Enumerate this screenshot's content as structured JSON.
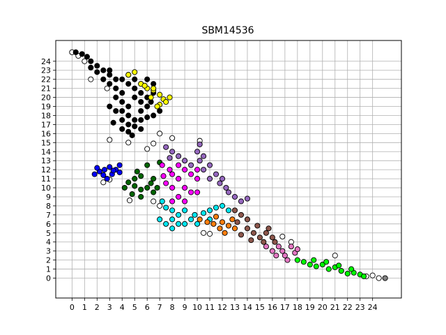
{
  "chart_data": {
    "type": "scatter",
    "title": "SBM14536",
    "xlabel": "",
    "ylabel": "",
    "xlim": [
      -1.3,
      26.3
    ],
    "ylim": [
      -2.2,
      26.3
    ],
    "grid": true,
    "x_ticks": [
      "0",
      "1",
      "2",
      "3",
      "4",
      "5",
      "6",
      "7",
      "8",
      "9",
      "10",
      "11",
      "12",
      "13",
      "14",
      "15",
      "16",
      "17",
      "18",
      "19",
      "20",
      "21",
      "22",
      "23",
      "24"
    ],
    "y_ticks": [
      "0",
      "1",
      "2",
      "3",
      "4",
      "5",
      "6",
      "7",
      "8",
      "9",
      "10",
      "11",
      "12",
      "13",
      "14",
      "15",
      "16",
      "17",
      "18",
      "19",
      "20",
      "21",
      "22",
      "23",
      "24"
    ],
    "series": [
      {
        "color": "#ffffff",
        "label_hint": "unassigned (white)",
        "points": [
          [
            0,
            25.0
          ],
          [
            0.5,
            24.6
          ],
          [
            1.0,
            24.0
          ],
          [
            1.5,
            22.0
          ],
          [
            2.8,
            21.0
          ],
          [
            3.0,
            15.3
          ],
          [
            4.5,
            15.0
          ],
          [
            6.0,
            14.3
          ],
          [
            6.5,
            14.9
          ],
          [
            7.0,
            16.0
          ],
          [
            8.0,
            15.5
          ],
          [
            10.2,
            15.2
          ],
          [
            2.5,
            10.6
          ],
          [
            3.0,
            10.9
          ],
          [
            4.6,
            8.6
          ],
          [
            6.5,
            8.5
          ],
          [
            7.0,
            8.0
          ],
          [
            10.5,
            5.0
          ],
          [
            11.0,
            4.9
          ],
          [
            16.8,
            4.6
          ],
          [
            17.5,
            4.0
          ],
          [
            21.0,
            2.5
          ],
          [
            21.5,
            0.8
          ],
          [
            23.5,
            0.2
          ],
          [
            24.0,
            0.3
          ],
          [
            24.5,
            0.0
          ]
        ]
      },
      {
        "color": "#000000",
        "label_hint": "black cluster",
        "points": [
          [
            0.3,
            25.0
          ],
          [
            0.8,
            24.8
          ],
          [
            1.2,
            24.5
          ],
          [
            1.5,
            24.0
          ],
          [
            2.0,
            23.5
          ],
          [
            2.5,
            23.0
          ],
          [
            3.0,
            22.5
          ],
          [
            2.0,
            22.8
          ],
          [
            1.5,
            23.3
          ],
          [
            3.5,
            22.0
          ],
          [
            3.0,
            21.5
          ],
          [
            3.5,
            21.0
          ],
          [
            4.0,
            20.5
          ],
          [
            3.5,
            20.0
          ],
          [
            4.0,
            19.5
          ],
          [
            4.5,
            19.0
          ],
          [
            4.0,
            18.5
          ],
          [
            4.5,
            18.0
          ],
          [
            5.0,
            17.5
          ],
          [
            4.5,
            17.0
          ],
          [
            4.0,
            16.5
          ],
          [
            4.5,
            16.2
          ],
          [
            5.0,
            16.8
          ],
          [
            5.5,
            17.5
          ],
          [
            6.0,
            17.8
          ],
          [
            6.5,
            18.0
          ],
          [
            5.5,
            18.5
          ],
          [
            6.0,
            19.0
          ],
          [
            5.5,
            19.5
          ],
          [
            5.0,
            20.0
          ],
          [
            5.5,
            20.5
          ],
          [
            5.0,
            21.0
          ],
          [
            4.5,
            21.5
          ],
          [
            4.0,
            22.0
          ],
          [
            4.5,
            22.5
          ],
          [
            5.0,
            22.0
          ],
          [
            5.5,
            21.5
          ],
          [
            6.0,
            22.0
          ],
          [
            6.5,
            21.5
          ],
          [
            3.0,
            19.0
          ],
          [
            3.5,
            18.5
          ],
          [
            4.0,
            17.5
          ],
          [
            3.3,
            17.2
          ],
          [
            6.3,
            19.5
          ],
          [
            6.5,
            20.5
          ],
          [
            2.5,
            22.0
          ],
          [
            3.0,
            23.0
          ],
          [
            7.0,
            18.5
          ],
          [
            6.0,
            20.0
          ],
          [
            5.5,
            16.5
          ],
          [
            4.8,
            15.8
          ]
        ]
      },
      {
        "color": "#ffff00",
        "label_hint": "yellow cluster",
        "points": [
          [
            4.5,
            22.5
          ],
          [
            5.0,
            22.8
          ],
          [
            5.5,
            21.5
          ],
          [
            6.0,
            21.0
          ],
          [
            6.5,
            20.8
          ],
          [
            6.3,
            20.0
          ],
          [
            7.0,
            20.3
          ],
          [
            7.3,
            19.8
          ],
          [
            7.0,
            19.2
          ],
          [
            7.5,
            19.5
          ],
          [
            6.8,
            19.0
          ],
          [
            7.8,
            20.0
          ],
          [
            5.8,
            21.3
          ],
          [
            6.5,
            21.0
          ]
        ]
      },
      {
        "color": "#0000ff",
        "label_hint": "blue cluster",
        "points": [
          [
            1.8,
            11.5
          ],
          [
            2.2,
            11.8
          ],
          [
            2.6,
            12.0
          ],
          [
            3.0,
            12.3
          ],
          [
            2.5,
            11.4
          ],
          [
            3.2,
            11.5
          ],
          [
            3.5,
            12.0
          ],
          [
            3.8,
            12.5
          ],
          [
            2.8,
            11.0
          ],
          [
            3.3,
            11.9
          ],
          [
            3.8,
            11.7
          ],
          [
            2.0,
            12.2
          ]
        ]
      },
      {
        "color": "#006400",
        "label_hint": "dark green cluster",
        "points": [
          [
            4.2,
            10.0
          ],
          [
            4.5,
            10.6
          ],
          [
            5.0,
            11.0
          ],
          [
            5.5,
            11.3
          ],
          [
            5.0,
            10.2
          ],
          [
            5.5,
            9.8
          ],
          [
            6.0,
            10.0
          ],
          [
            6.5,
            9.5
          ],
          [
            4.8,
            9.3
          ],
          [
            5.5,
            9.0
          ],
          [
            6.3,
            10.5
          ],
          [
            6.5,
            11.0
          ],
          [
            6.0,
            12.5
          ],
          [
            7.0,
            12.8
          ],
          [
            5.2,
            11.8
          ],
          [
            6.8,
            10.0
          ]
        ]
      },
      {
        "color": "#ff00ff",
        "label_hint": "magenta cluster",
        "points": [
          [
            7.2,
            12.5
          ],
          [
            7.8,
            12.0
          ],
          [
            8.5,
            12.5
          ],
          [
            9.0,
            12.0
          ],
          [
            8.0,
            11.5
          ],
          [
            8.5,
            11.0
          ],
          [
            9.5,
            11.5
          ],
          [
            10.0,
            11.0
          ],
          [
            7.5,
            10.5
          ],
          [
            8.0,
            10.0
          ],
          [
            9.0,
            10.0
          ],
          [
            9.5,
            9.5
          ],
          [
            8.5,
            9.0
          ],
          [
            9.0,
            8.5
          ],
          [
            8.0,
            8.5
          ],
          [
            10.0,
            9.5
          ],
          [
            7.3,
            11.3
          ],
          [
            10.0,
            12.0
          ]
        ]
      },
      {
        "color": "#9467bd",
        "label_hint": "purple cluster",
        "points": [
          [
            7.5,
            14.5
          ],
          [
            8.0,
            14.0
          ],
          [
            7.8,
            13.3
          ],
          [
            8.5,
            13.5
          ],
          [
            9.0,
            13.0
          ],
          [
            10.0,
            14.0
          ],
          [
            10.5,
            13.5
          ],
          [
            10.2,
            13.0
          ],
          [
            11.0,
            12.5
          ],
          [
            10.5,
            12.0
          ],
          [
            11.5,
            11.5
          ],
          [
            11.0,
            11.0
          ],
          [
            12.0,
            11.0
          ],
          [
            11.8,
            10.5
          ],
          [
            12.3,
            10.0
          ],
          [
            12.5,
            9.5
          ],
          [
            13.0,
            9.0
          ],
          [
            13.5,
            8.5
          ],
          [
            14.0,
            8.8
          ],
          [
            10.2,
            14.8
          ],
          [
            9.5,
            12.5
          ]
        ]
      },
      {
        "color": "#00e5ee",
        "label_hint": "cyan cluster",
        "points": [
          [
            7.2,
            8.5
          ],
          [
            7.5,
            7.8
          ],
          [
            8.0,
            7.5
          ],
          [
            7.0,
            6.5
          ],
          [
            7.5,
            6.0
          ],
          [
            8.0,
            6.5
          ],
          [
            8.5,
            6.0
          ],
          [
            8.5,
            7.0
          ],
          [
            9.0,
            7.5
          ],
          [
            9.5,
            6.5
          ],
          [
            9.8,
            7.0
          ],
          [
            10.5,
            7.2
          ],
          [
            11.0,
            7.5
          ],
          [
            11.5,
            7.8
          ],
          [
            12.0,
            8.0
          ],
          [
            11.0,
            6.5
          ],
          [
            10.0,
            6.0
          ],
          [
            8.0,
            5.5
          ],
          [
            9.0,
            6.0
          ],
          [
            12.5,
            7.5
          ]
        ]
      },
      {
        "color": "#ff7f0e",
        "label_hint": "orange cluster",
        "points": [
          [
            10.2,
            6.5
          ],
          [
            10.8,
            6.2
          ],
          [
            11.3,
            6.0
          ],
          [
            11.5,
            6.8
          ],
          [
            12.0,
            6.2
          ],
          [
            12.5,
            5.8
          ],
          [
            12.8,
            6.5
          ],
          [
            11.8,
            5.5
          ],
          [
            12.2,
            5.0
          ],
          [
            13.0,
            5.5
          ]
        ]
      },
      {
        "color": "#8c564b",
        "label_hint": "brown cluster",
        "points": [
          [
            13.0,
            7.5
          ],
          [
            13.5,
            7.0
          ],
          [
            13.2,
            6.2
          ],
          [
            14.0,
            6.5
          ],
          [
            14.0,
            5.5
          ],
          [
            14.5,
            5.0
          ],
          [
            14.8,
            5.8
          ],
          [
            15.0,
            4.5
          ],
          [
            15.5,
            5.0
          ],
          [
            16.0,
            4.5
          ],
          [
            15.3,
            4.0
          ],
          [
            16.2,
            4.0
          ],
          [
            13.5,
            4.8
          ],
          [
            14.3,
            4.2
          ],
          [
            15.7,
            5.5
          ]
        ]
      },
      {
        "color": "#e377c2",
        "label_hint": "pink cluster",
        "points": [
          [
            15.5,
            3.5
          ],
          [
            16.0,
            3.0
          ],
          [
            16.5,
            3.5
          ],
          [
            16.8,
            3.0
          ],
          [
            17.0,
            2.5
          ],
          [
            17.5,
            3.5
          ],
          [
            17.8,
            2.8
          ],
          [
            17.2,
            2.0
          ],
          [
            16.3,
            2.5
          ],
          [
            18.0,
            3.2
          ]
        ]
      },
      {
        "color": "#00ff00",
        "label_hint": "green cluster",
        "points": [
          [
            18.0,
            2.0
          ],
          [
            18.5,
            1.8
          ],
          [
            19.0,
            1.5
          ],
          [
            19.5,
            1.3
          ],
          [
            20.0,
            1.5
          ],
          [
            20.5,
            1.0
          ],
          [
            21.0,
            1.2
          ],
          [
            21.5,
            0.8
          ],
          [
            22.0,
            0.5
          ],
          [
            22.5,
            0.6
          ],
          [
            23.0,
            0.4
          ],
          [
            23.3,
            0.2
          ],
          [
            19.3,
            2.0
          ],
          [
            20.3,
            1.8
          ],
          [
            21.3,
            1.4
          ],
          [
            22.3,
            1.0
          ]
        ]
      },
      {
        "color": "#808080",
        "label_hint": "grey point",
        "points": [
          [
            25.0,
            0.0
          ]
        ]
      }
    ]
  }
}
